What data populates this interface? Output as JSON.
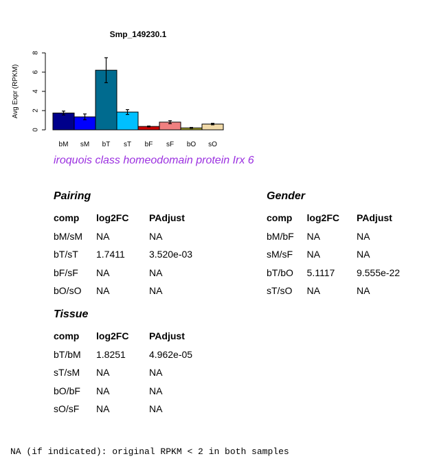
{
  "chart_data": {
    "type": "bar",
    "title": "Smp_149230.1",
    "ylabel": "Avg Expr (RPKM)",
    "xlabel": "",
    "ylim": [
      0,
      8
    ],
    "yticks": [
      0,
      2,
      4,
      6,
      8
    ],
    "categories": [
      "bM",
      "sM",
      "bT",
      "sT",
      "bF",
      "sF",
      "bO",
      "sO"
    ],
    "values": [
      1.75,
      1.35,
      6.2,
      1.85,
      0.35,
      0.8,
      0.2,
      0.6
    ],
    "errors": [
      0.2,
      0.3,
      1.3,
      0.25,
      0.05,
      0.15,
      0.05,
      0.08
    ],
    "colors": [
      "#00008b",
      "#0000ff",
      "#006b8f",
      "#00bfff",
      "#cd0000",
      "#f08080",
      "#a8a832",
      "#f0d9a8"
    ],
    "grid": false
  },
  "subtitle": "iroquois class homeodomain protein Irx 6",
  "pairing": {
    "title": "Pairing",
    "headers": [
      "comp",
      "log2FC",
      "PAdjust"
    ],
    "rows": [
      [
        "bM/sM",
        "NA",
        "NA"
      ],
      [
        "bT/sT",
        "1.7411",
        "3.520e-03"
      ],
      [
        "bF/sF",
        "NA",
        "NA"
      ],
      [
        "bO/sO",
        "NA",
        "NA"
      ]
    ]
  },
  "gender": {
    "title": "Gender",
    "headers": [
      "comp",
      "log2FC",
      "PAdjust"
    ],
    "rows": [
      [
        "bM/bF",
        "NA",
        "NA"
      ],
      [
        "sM/sF",
        "NA",
        "NA"
      ],
      [
        "bT/bO",
        "5.1117",
        "9.555e-22"
      ],
      [
        "sT/sO",
        "NA",
        "NA"
      ]
    ]
  },
  "tissue": {
    "title": "Tissue",
    "headers": [
      "comp",
      "log2FC",
      "PAdjust"
    ],
    "rows": [
      [
        "bT/bM",
        "1.8251",
        "4.962e-05"
      ],
      [
        "sT/sM",
        "NA",
        "NA"
      ],
      [
        "bO/bF",
        "NA",
        "NA"
      ],
      [
        "sO/sF",
        "NA",
        "NA"
      ]
    ]
  },
  "footnote": "NA (if indicated): original RPKM < 2 in both samples"
}
